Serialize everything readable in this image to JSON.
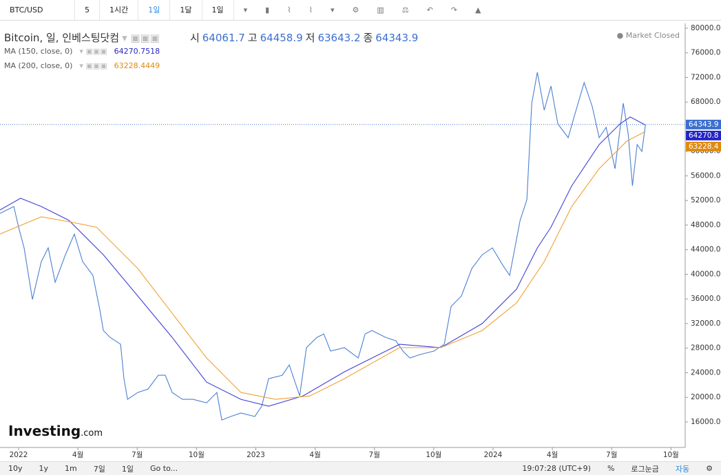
{
  "toolbar": {
    "symbol": "BTC/USD",
    "intervals": [
      "5",
      "1시간",
      "1일",
      "1달",
      "1일"
    ]
  },
  "legend": {
    "title": "Bitcoin, 일, 인베스팅닷컴",
    "fields": [
      {
        "label": "시",
        "value": "64061.7"
      },
      {
        "label": "고",
        "value": "64458.9"
      },
      {
        "label": "저",
        "value": "63643.2"
      },
      {
        "label": "종"
      }
    ],
    "status": "Market Closed"
  },
  "logo": "Investing",
  "logo_suffix": ".com",
  "footer": {
    "ranges": [
      "10y",
      "1y",
      "1m",
      "7일",
      "1일"
    ],
    "goto": "Go to...",
    "time": "19:07:28 (UTC+9)",
    "percent": "%",
    "log": "로그눈금",
    "auto": "자동"
  },
  "chart_data": {
    "type": "line",
    "xlim": [
      -0.94,
      33.72
    ],
    "xticks": [
      {
        "value": 0,
        "label": "2022"
      },
      {
        "value": 3,
        "label": "4월"
      },
      {
        "value": 6,
        "label": "7월"
      },
      {
        "value": 9,
        "label": "10월"
      },
      {
        "value": 12,
        "label": "2023"
      },
      {
        "value": 15,
        "label": "4월"
      },
      {
        "value": 18,
        "label": "7월"
      },
      {
        "value": 21,
        "label": "10월"
      },
      {
        "value": 24,
        "label": "2024"
      },
      {
        "value": 27,
        "label": "4월"
      },
      {
        "value": 30,
        "label": "7월"
      },
      {
        "value": 33,
        "label": "10월"
      }
    ],
    "ylim": [
      11860,
      80780
    ],
    "yticks": [
      {
        "value": 16000,
        "label": "16000.0"
      },
      {
        "value": 20000,
        "label": "20000.0"
      },
      {
        "value": 24000,
        "label": "24000.0"
      },
      {
        "value": 28000,
        "label": "28000.0"
      },
      {
        "value": 32000,
        "label": "32000.0"
      },
      {
        "value": 36000,
        "label": "36000.0"
      },
      {
        "value": 40000,
        "label": "40000.0"
      },
      {
        "value": 44000,
        "label": "44000.0"
      },
      {
        "value": 48000,
        "label": "48000.0"
      },
      {
        "value": 52000,
        "label": "52000.0"
      },
      {
        "value": 56000,
        "label": "56000.0"
      },
      {
        "value": 60000,
        "label": "60000.0"
      },
      {
        "value": 64000,
        "label": "64000.0"
      },
      {
        "value": 68000,
        "label": "68000.0"
      },
      {
        "value": 72000,
        "label": "72000.0"
      },
      {
        "value": 76000,
        "label": "76000.0"
      },
      {
        "value": 80000,
        "label": "80000.0"
      }
    ],
    "grid": false,
    "series": [
      {
        "name": "Bitcoin",
        "color": "#4a7fd4",
        "last_label": "64343.9",
        "label_color": "#3b6fd0",
        "x": [
          -0.94,
          -0.59,
          -0.24,
          0,
          0.28,
          0.7,
          1.15,
          1.5,
          1.85,
          2.37,
          2.82,
          3.24,
          3.76,
          4.11,
          4.29,
          4.63,
          5.16,
          5.33,
          5.51,
          6.03,
          6.55,
          7.07,
          7.42,
          7.77,
          8.29,
          8.82,
          9.51,
          10.03,
          10.28,
          10.73,
          11.25,
          11.95,
          12.3,
          12.65,
          13.34,
          13.69,
          14.22,
          14.56,
          15.09,
          15.44,
          15.78,
          16.48,
          17.18,
          17.53,
          17.87,
          18.57,
          19.09,
          19.44,
          19.79,
          20.31,
          21.01,
          21.53,
          21.88,
          22.4,
          22.93,
          23.45,
          23.97,
          24.49,
          24.84,
          25.37,
          25.71,
          25.96,
          26.24,
          26.59,
          26.93,
          27.28,
          27.8,
          28.15,
          28.61,
          29.02,
          29.37,
          29.72,
          30.17,
          30.59,
          30.84,
          31.05,
          31.29,
          31.53,
          31.71
        ],
        "values": [
          49900,
          50460,
          51020,
          47660,
          44300,
          35910,
          42070,
          44300,
          38710,
          43180,
          46540,
          42070,
          39830,
          34230,
          30870,
          29750,
          28630,
          23040,
          19680,
          20800,
          21360,
          23600,
          23600,
          20800,
          19680,
          19680,
          19120,
          20800,
          16320,
          16890,
          17450,
          16890,
          18570,
          23040,
          23600,
          25280,
          20240,
          28080,
          29750,
          30310,
          27520,
          28080,
          26400,
          30310,
          30870,
          29750,
          29190,
          27520,
          26400,
          26960,
          27520,
          28630,
          34790,
          36470,
          40950,
          43180,
          44300,
          41500,
          39830,
          48780,
          52140,
          67800,
          72840,
          66680,
          70600,
          64450,
          62210,
          66130,
          71160,
          67240,
          62210,
          63890,
          57170,
          67800,
          62770,
          54380,
          61090,
          59970,
          64343.9
        ]
      },
      {
        "name": "MA (150, close, 0)",
        "color": "#3f3fd6",
        "last_label": "64270.8",
        "label_color": "#2424c8",
        "x": [
          -0.94,
          0.1,
          1.15,
          2.54,
          4.29,
          6.03,
          7.77,
          9.51,
          11.25,
          12.65,
          14.39,
          16.48,
          19.27,
          21.36,
          23.45,
          25.19,
          26.24,
          26.93,
          27.98,
          29.37,
          30.42,
          30.94,
          31.71
        ],
        "values": [
          50460,
          52360,
          51020,
          48780,
          43180,
          36470,
          29750,
          22480,
          19680,
          18570,
          20240,
          24160,
          28630,
          28080,
          32000,
          37590,
          44300,
          47660,
          54380,
          61090,
          64450,
          65570,
          64270.7518
        ]
      },
      {
        "name": "MA (200, close, 0)",
        "color": "#f0a030",
        "last_label": "63228.4",
        "label_color": "#e08a10",
        "x": [
          -0.94,
          1.15,
          2.54,
          3.94,
          6.03,
          7.77,
          9.51,
          11.25,
          13,
          14.74,
          16.48,
          19.27,
          21.36,
          23.45,
          25.19,
          26.59,
          27.98,
          29.37,
          30.77,
          31.71
        ],
        "values": [
          46540,
          49340,
          48560,
          47660,
          40950,
          33670,
          26400,
          20800,
          19680,
          20240,
          23040,
          28080,
          28080,
          30870,
          35350,
          42070,
          51020,
          57170,
          61650,
          63228.4449
        ]
      }
    ]
  }
}
